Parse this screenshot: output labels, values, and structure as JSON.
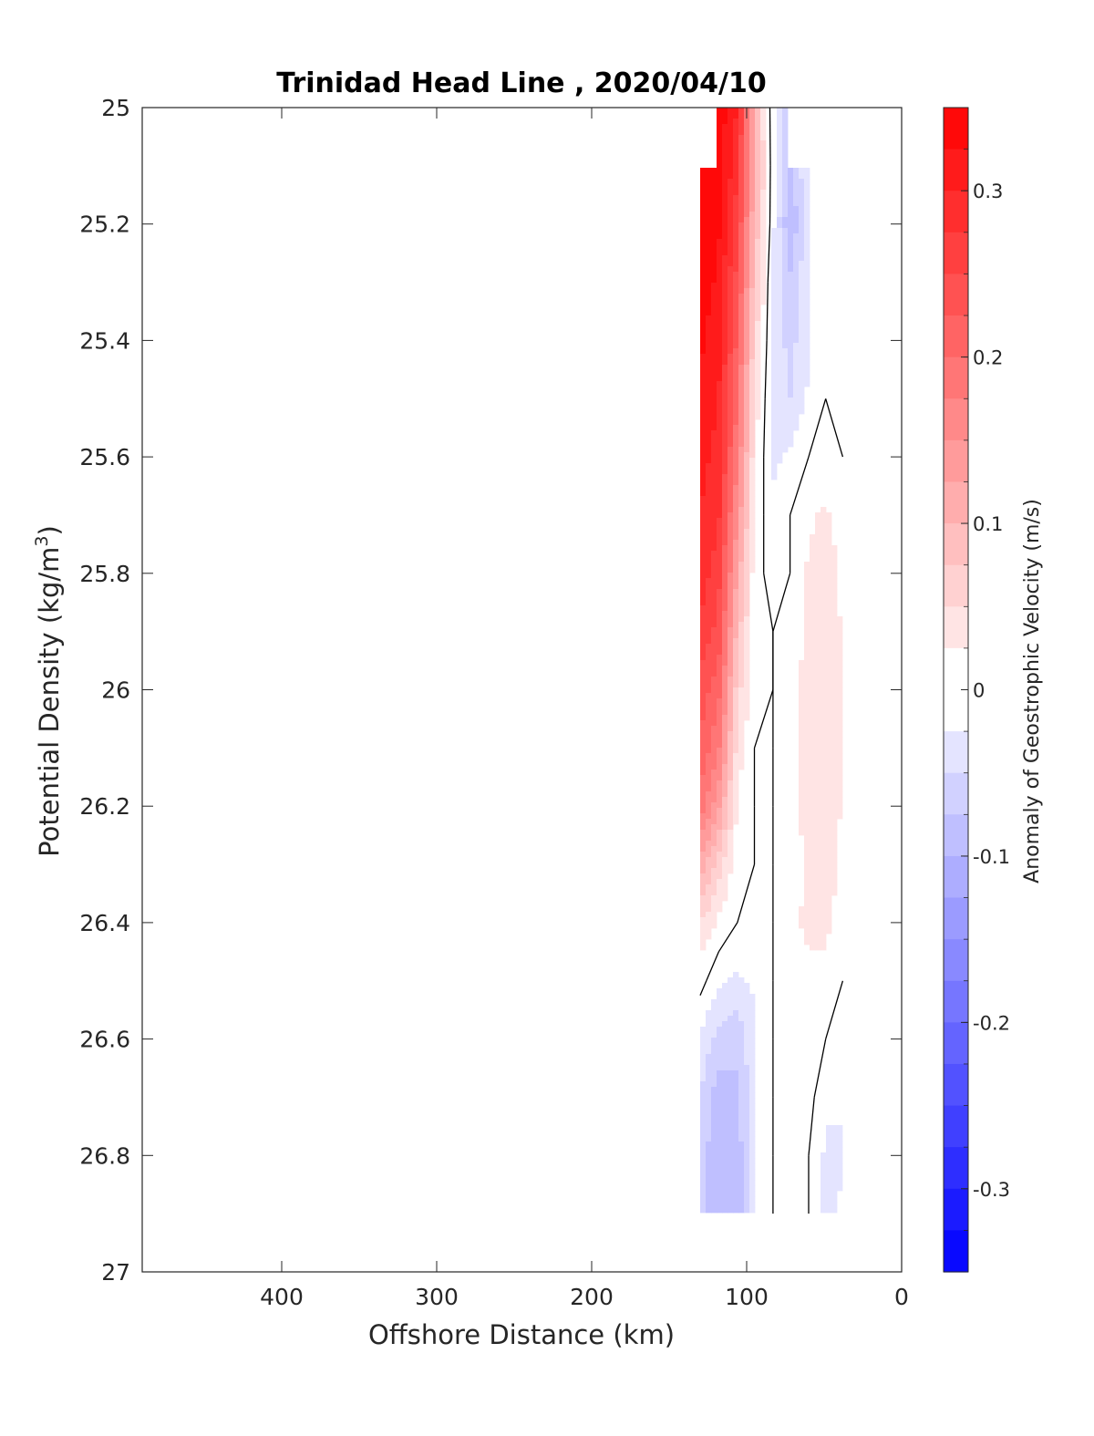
{
  "chart_data": {
    "type": "heatmap",
    "title": "Trinidad Head Line , 2020/04/10",
    "xlabel": "Offshore Distance (km)",
    "ylabel_main": "Potential Density (kg/m",
    "ylabel_sup": "3",
    "ylabel_close": ")",
    "x_reversed": true,
    "xlim": [
      0,
      490
    ],
    "ylim": [
      25,
      27
    ],
    "y_reversed": true,
    "x_ticks": [
      400,
      300,
      200,
      100,
      0
    ],
    "x_tick_labels": [
      "400",
      "300",
      "200",
      "100",
      "0"
    ],
    "y_ticks": [
      25,
      25.2,
      25.4,
      25.6,
      25.8,
      26,
      26.2,
      26.4,
      26.6,
      26.8,
      27
    ],
    "y_tick_labels": [
      "25",
      "25.2",
      "25.4",
      "25.6",
      "25.8",
      "26",
      "26.2",
      "26.4",
      "26.6",
      "26.8",
      "27"
    ],
    "colorbar": {
      "label": "Anomaly of Geostrophic Velocity (m/s)",
      "range": [
        -0.35,
        0.35
      ],
      "levels_step": 0.025,
      "ticks": [
        0.3,
        0.2,
        0.1,
        0,
        -0.1,
        -0.2,
        -0.3
      ],
      "tick_labels": [
        "0.3",
        "0.2",
        "0.1",
        "0",
        "-0.1",
        "-0.2",
        "-0.3"
      ],
      "colors": {
        "positive": "#ff0000",
        "negative": "#0000ff",
        "zero": "#ffffff"
      }
    },
    "grid": false,
    "field": {
      "units": "m/s",
      "x_km": [
        130,
        118,
        106,
        95,
        83,
        72,
        60,
        49,
        38,
        28
      ],
      "density": [
        25.0,
        25.1,
        25.2,
        25.3,
        25.4,
        25.5,
        25.6,
        25.7,
        25.8,
        25.9,
        26.0,
        26.1,
        26.2,
        26.3,
        26.4,
        26.5,
        26.6,
        26.7,
        26.8,
        26.9
      ],
      "values": [
        [
          null,
          0.34,
          0.3,
          0.1,
          -0.02,
          -0.08,
          null,
          null,
          null,
          null
        ],
        [
          0.35,
          0.34,
          0.28,
          0.12,
          -0.02,
          -0.09,
          -0.02,
          null,
          null,
          null
        ],
        [
          0.35,
          0.33,
          0.26,
          0.1,
          -0.02,
          -0.1,
          -0.03,
          0.0,
          0.0,
          null
        ],
        [
          0.34,
          0.32,
          0.24,
          0.08,
          -0.03,
          -0.07,
          -0.03,
          0.0,
          0.0,
          null
        ],
        [
          0.33,
          0.31,
          0.22,
          0.06,
          -0.03,
          -0.06,
          -0.03,
          0.0,
          0.0,
          null
        ],
        [
          0.32,
          0.3,
          0.2,
          0.04,
          -0.03,
          -0.05,
          -0.02,
          0.0,
          0.0,
          null
        ],
        [
          0.31,
          0.29,
          0.18,
          0.03,
          -0.03,
          -0.02,
          0.0,
          0.01,
          0.0,
          null
        ],
        [
          0.3,
          0.28,
          0.15,
          0.02,
          -0.02,
          0.0,
          0.02,
          0.03,
          0.01,
          null
        ],
        [
          0.29,
          0.26,
          0.12,
          0.01,
          -0.01,
          0.0,
          0.03,
          0.04,
          0.02,
          null
        ],
        [
          0.27,
          0.24,
          0.09,
          0.01,
          0.0,
          0.01,
          0.03,
          0.05,
          0.02,
          null
        ],
        [
          0.24,
          0.21,
          0.06,
          0.01,
          0.0,
          0.01,
          0.04,
          0.05,
          0.02,
          null
        ],
        [
          0.22,
          0.18,
          0.04,
          0.0,
          0.0,
          0.01,
          0.04,
          0.05,
          0.02,
          null
        ],
        [
          0.19,
          0.13,
          0.02,
          0.0,
          0.0,
          0.01,
          0.04,
          0.05,
          0.02,
          null
        ],
        [
          0.12,
          0.06,
          0.01,
          0.0,
          0.0,
          0.01,
          0.03,
          0.04,
          0.02,
          null
        ],
        [
          0.05,
          0.02,
          0.0,
          0.0,
          0.0,
          0.02,
          0.03,
          0.03,
          0.01,
          null
        ],
        [
          0.01,
          -0.02,
          -0.03,
          -0.02,
          0.0,
          0.01,
          0.02,
          0.02,
          0.0,
          null
        ],
        [
          -0.03,
          -0.06,
          -0.07,
          -0.03,
          0.0,
          0.01,
          0.02,
          0.0,
          -0.01,
          null
        ],
        [
          -0.05,
          -0.09,
          -0.08,
          -0.03,
          0.0,
          0.02,
          0.01,
          -0.02,
          -0.02,
          null
        ],
        [
          -0.06,
          -0.1,
          -0.09,
          -0.03,
          0.0,
          0.02,
          0.0,
          -0.03,
          -0.03,
          null
        ],
        [
          -0.06,
          -0.1,
          -0.09,
          -0.03,
          0.0,
          0.02,
          0.0,
          -0.03,
          -0.02,
          null
        ]
      ]
    }
  }
}
